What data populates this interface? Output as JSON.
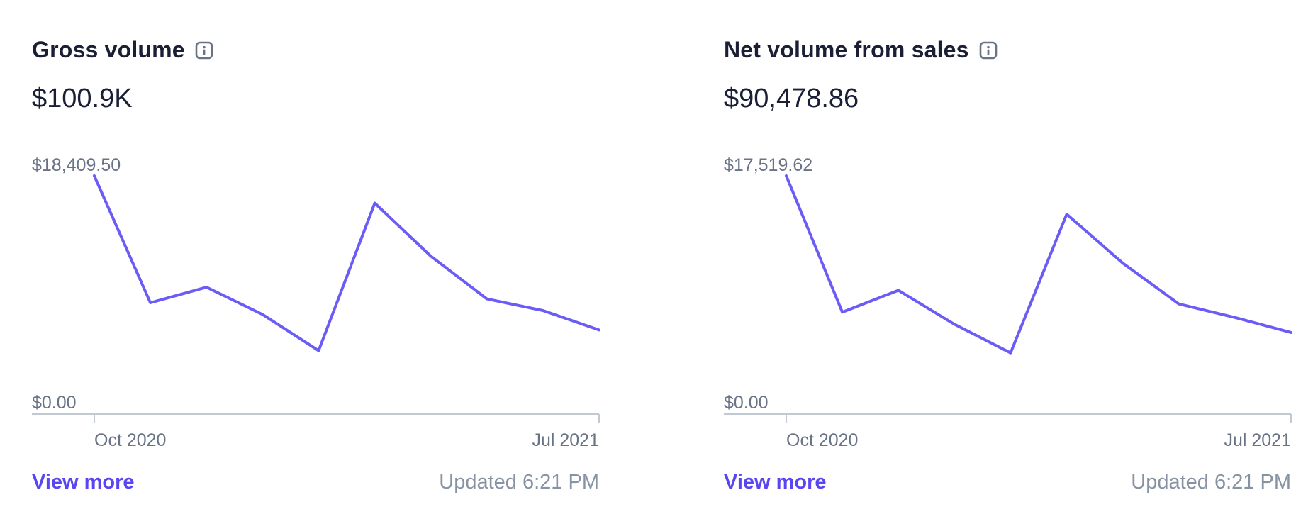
{
  "colors": {
    "accent": "#6b5cf6",
    "link": "#5a46f0",
    "muted": "#697386",
    "axis": "#c1c9d2",
    "title": "#1a1f36"
  },
  "cards": [
    {
      "title": "Gross volume",
      "info_icon": "info-icon",
      "value": "$100.9K",
      "view_more": "View more",
      "updated": "Updated 6:21 PM",
      "chart_data": {
        "type": "line",
        "ylim": [
          0,
          18409.5
        ],
        "y_tick_labels": [
          "$18,409.50",
          "$0.00"
        ],
        "x_tick_labels": [
          "Oct 2020",
          "Jul 2021"
        ],
        "x_tick_indices": [
          0,
          9
        ],
        "grid": false,
        "series": [
          {
            "values": [
              18409.5,
              8600,
              9800,
              7700,
              4900,
              16300,
              12200,
              8900,
              8000,
              6500
            ]
          }
        ]
      }
    },
    {
      "title": "Net volume from sales",
      "info_icon": "info-icon",
      "value": "$90,478.86",
      "view_more": "View more",
      "updated": "Updated 6:21 PM",
      "chart_data": {
        "type": "line",
        "ylim": [
          0,
          17519.62
        ],
        "y_tick_labels": [
          "$17,519.62",
          "$0.00"
        ],
        "x_tick_labels": [
          "Oct 2020",
          "Jul 2021"
        ],
        "x_tick_indices": [
          0,
          9
        ],
        "grid": false,
        "series": [
          {
            "values": [
              17519.62,
              7500,
              9100,
              6600,
              4500,
              14700,
              11100,
              8100,
              7100,
              6000
            ]
          }
        ]
      }
    }
  ]
}
